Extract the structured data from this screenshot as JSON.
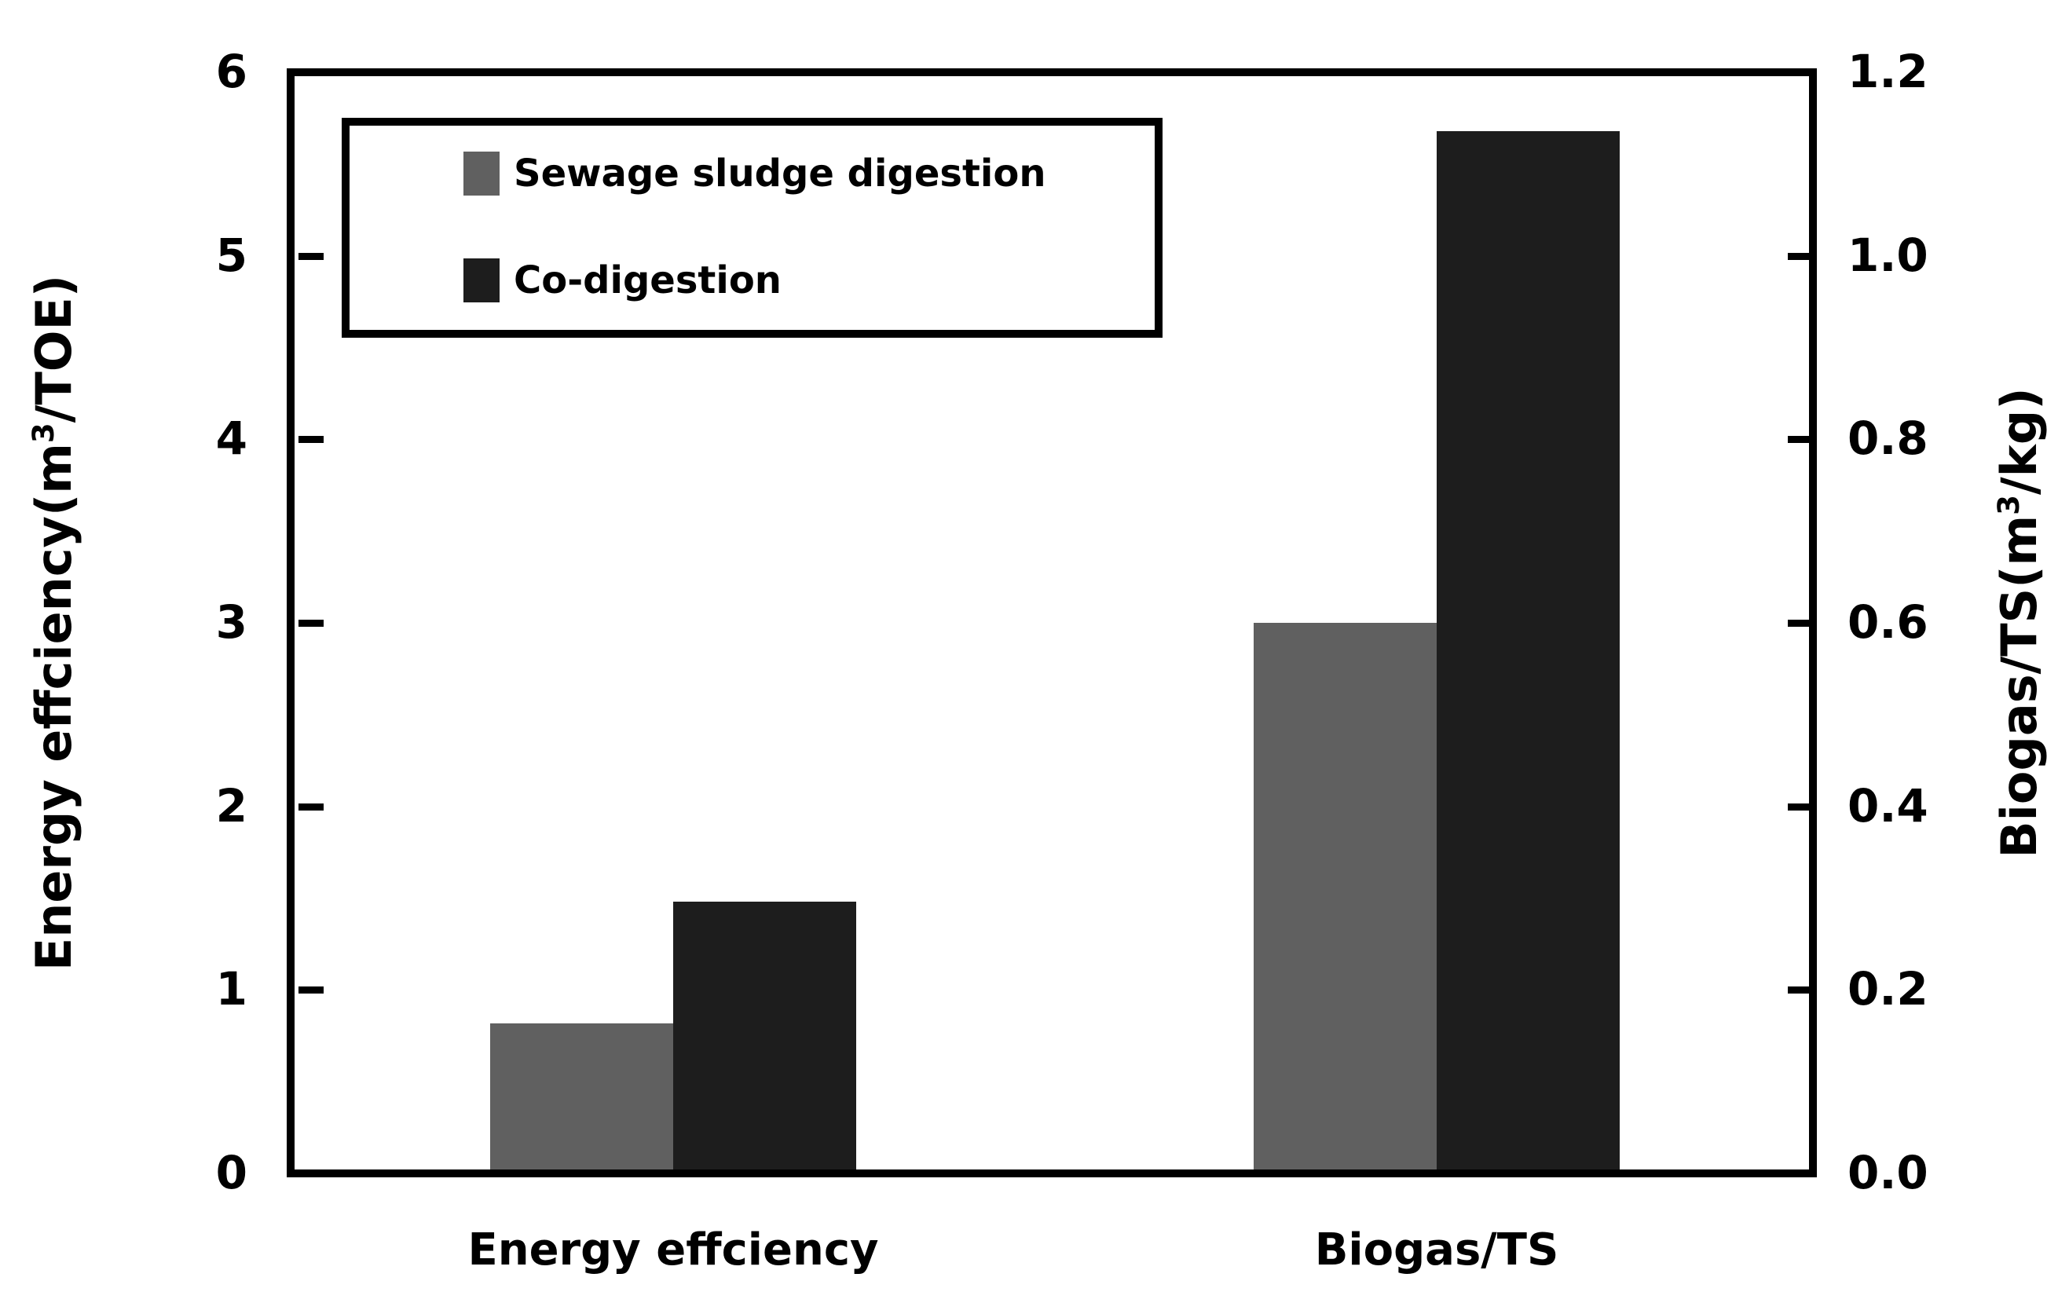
{
  "chart_data": {
    "type": "bar",
    "title": "",
    "grid": false,
    "legend_position": "top-left",
    "categories": [
      "Energy effciency",
      "Biogas/TS"
    ],
    "series": [
      {
        "name": "Sewage sludge digestion",
        "color": "#606060",
        "values_left_axis_units": [
          0.8,
          3.0
        ],
        "readings": {
          "energy_efficiency_m3_per_TOE": 0.8,
          "biogas_per_TS_m3_per_kg": 0.6
        }
      },
      {
        "name": "Co-digestion",
        "color": "#1d1d1d",
        "values_left_axis_units": [
          1.47,
          5.7
        ],
        "readings": {
          "energy_efficiency_m3_per_TOE": 1.47,
          "biogas_per_TS_m3_per_kg": 1.14
        }
      }
    ],
    "axes": {
      "left": {
        "title_prefix": "Energy effciency(m",
        "title_sup": "3",
        "title_suffix": "/TOE)",
        "tick_labels": [
          "6",
          "5",
          "4",
          "3",
          "2",
          "1",
          "0"
        ],
        "range": [
          0,
          6
        ]
      },
      "right": {
        "title_prefix": "Biogas/TS(m",
        "title_sup": "3",
        "title_suffix": "/kg)",
        "tick_labels": [
          "1.2",
          "1.0",
          "0.8",
          "0.6",
          "0.4",
          "0.2",
          "0.0"
        ],
        "range": [
          0,
          1.2
        ]
      }
    }
  }
}
